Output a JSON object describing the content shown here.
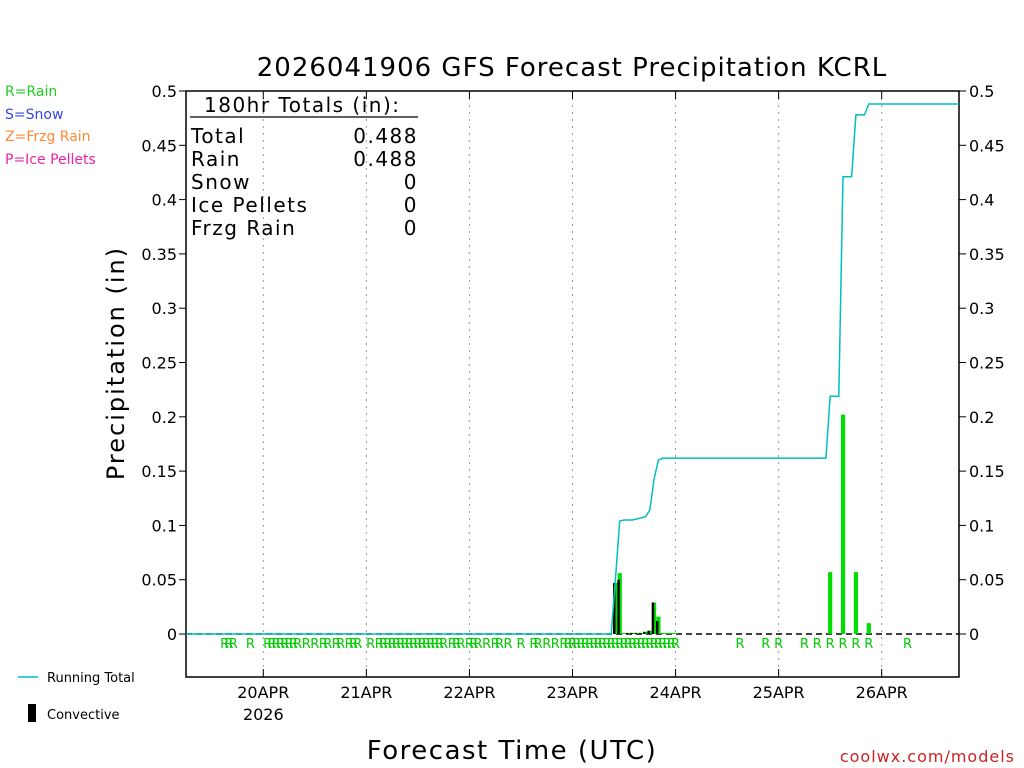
{
  "chart_data": {
    "type": "bar",
    "title": "2026041906 GFS Forecast Precipitation KCRL",
    "ylabel": "Precipitation (in)",
    "xlabel": "Forecast Time (UTC)",
    "ylim": [
      -0.04,
      0.5
    ],
    "yticks": [
      "0",
      "0.05",
      "0.1",
      "0.15",
      "0.2",
      "0.25",
      "0.3",
      "0.35",
      "0.4",
      "0.45",
      "0.5"
    ],
    "ytick_values": [
      0,
      0.05,
      0.1,
      0.15,
      0.2,
      0.25,
      0.3,
      0.35,
      0.4,
      0.45,
      0.5
    ],
    "x_unit": "forecast hour",
    "xlim": [
      0,
      180
    ],
    "x_date_ticks": [
      {
        "hour": 18,
        "label": "20APR",
        "sub": "2026"
      },
      {
        "hour": 42,
        "label": "21APR"
      },
      {
        "hour": 66,
        "label": "22APR"
      },
      {
        "hour": 90,
        "label": "23APR"
      },
      {
        "hour": 114,
        "label": "24APR"
      },
      {
        "hour": 138,
        "label": "25APR"
      },
      {
        "hour": 162,
        "label": "26APR"
      }
    ],
    "series": [
      {
        "name": "Precipitation (hourly)",
        "color": "#00dd00",
        "x": [
          100,
          101,
          102,
          103,
          104,
          105,
          106,
          107,
          108,
          109,
          110,
          111,
          112,
          113,
          114,
          150,
          153,
          156,
          159,
          162
        ],
        "values": [
          0.047,
          0.056,
          0.001,
          0.001,
          0.001,
          0.001,
          0.001,
          0.002,
          0.003,
          0.029,
          0.016,
          0.001,
          0.001,
          0.001,
          0.001,
          0.057,
          0.202,
          0.057,
          0.01,
          0.0
        ]
      },
      {
        "name": "Convective",
        "color": "#000000",
        "x": [
          100,
          101,
          103,
          104,
          105,
          106,
          107,
          108,
          109,
          110
        ],
        "values": [
          0.047,
          0.05,
          0.001,
          0.001,
          0.001,
          0.001,
          0.002,
          0.003,
          0.029,
          0.012
        ]
      },
      {
        "name": "Running Total",
        "color": "#00bfbf",
        "x": [
          0,
          99,
          100,
          101,
          102,
          103,
          104,
          105,
          106,
          107,
          108,
          109,
          110,
          111,
          114,
          120,
          147,
          149,
          150,
          152,
          153,
          155,
          156,
          158,
          159,
          180
        ],
        "values": [
          0,
          0,
          0.05,
          0.104,
          0.105,
          0.105,
          0.105,
          0.106,
          0.107,
          0.108,
          0.114,
          0.143,
          0.16,
          0.162,
          0.162,
          0.162,
          0.162,
          0.162,
          0.219,
          0.219,
          0.421,
          0.421,
          0.478,
          0.478,
          0.488,
          0.488
        ]
      }
    ],
    "ptype_markers": {
      "letter": "R",
      "color": "#00cc00",
      "hours": [
        9,
        10,
        11,
        15,
        19,
        20,
        21,
        22,
        23,
        24,
        25,
        26,
        28,
        30,
        32,
        33,
        35,
        36,
        38,
        39,
        40,
        43,
        45,
        46,
        47,
        48,
        49,
        50,
        51,
        52,
        53,
        54,
        55,
        56,
        57,
        58,
        59,
        60,
        62,
        63,
        64,
        66,
        67,
        68,
        70,
        72,
        73,
        75,
        78,
        81,
        82,
        84,
        86,
        88,
        89,
        90,
        91,
        92,
        93,
        94,
        95,
        96,
        97,
        98,
        99,
        100,
        101,
        102,
        103,
        104,
        105,
        106,
        107,
        108,
        109,
        110,
        111,
        112,
        113,
        114,
        129,
        135,
        138,
        144,
        147,
        150,
        153,
        156,
        159,
        168
      ]
    }
  },
  "totals": {
    "heading": "180hr Totals (in):",
    "rows": [
      {
        "label": "Total",
        "value": "0.488"
      },
      {
        "label": "Rain",
        "value": "0.488"
      },
      {
        "label": "Snow",
        "value": "0"
      },
      {
        "label": "Ice Pellets",
        "value": "0"
      },
      {
        "label": "Frzg Rain",
        "value": "0"
      }
    ]
  },
  "ptype_legend": [
    {
      "text": "R=Rain",
      "color": "#22cc22"
    },
    {
      "text": "S=Snow",
      "color": "#3344ee"
    },
    {
      "text": "Z=Frzg Rain",
      "color": "#ff8833"
    },
    {
      "text": "P=Ice Pellets",
      "color": "#ee22aa"
    }
  ],
  "series_legend": [
    {
      "text": "Running Total",
      "color": "#00bfbf"
    },
    {
      "text": "Convective",
      "color": "#000000"
    }
  ],
  "credit": "coolwx.com/models",
  "credit_color": "#cc2222"
}
